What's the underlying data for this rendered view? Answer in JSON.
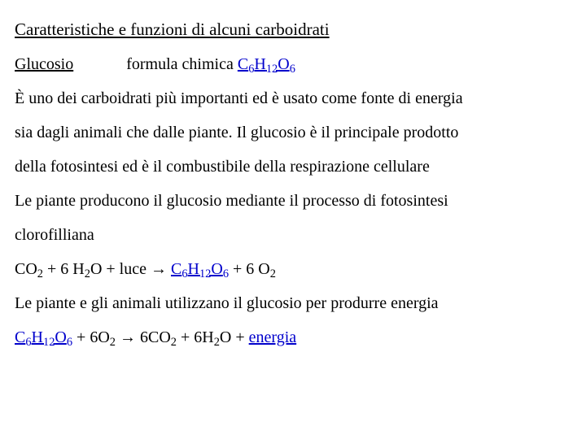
{
  "title": "Caratteristiche e funzioni di alcuni carboidrati",
  "subhead": "Glucosio",
  "formula_label": "formula chimica ",
  "formula": {
    "c": "C",
    "c_n": "6",
    "h": "H",
    "h_n": "12",
    "o": "O",
    "o_n": "6"
  },
  "p1a": "È uno dei carboidrati più importanti ed è usato come fonte di energia",
  "p1b": "sia dagli animali che dalle piante. Il glucosio è il principale prodotto",
  "p1c": "della fotosintesi ed è il combustibile della respirazione cellulare",
  "p2a": "Le piante producono il glucosio mediante il processo di fotosintesi",
  "p2b": "clorofilliana",
  "eq1": {
    "co": "CO",
    "co_n": "2",
    "plus1": " + 6 H",
    "h2o_n": "2",
    "h2o_tail": "O + luce → ",
    "gc": "C",
    "gc_n": "6",
    "gh": "H",
    "gh_n": "12",
    "go": "O",
    "go_n": "6",
    "plus2": " + 6 O",
    "o2_n": "2"
  },
  "p3": "Le piante e gli animali utilizzano il glucosio per produrre energia",
  "eq2": {
    "gc": "C",
    "gc_n": "6",
    "gh": "H",
    "gh_n": "12",
    "go": "O",
    "go_n": "6",
    "plus1": " + 6O",
    "o2_n": "2",
    "arrow": " → 6CO",
    "co2_n": "2",
    "plus2": " + 6H",
    "h2o_n": "2",
    "h2o_tail": "O + ",
    "energy": "energia"
  }
}
